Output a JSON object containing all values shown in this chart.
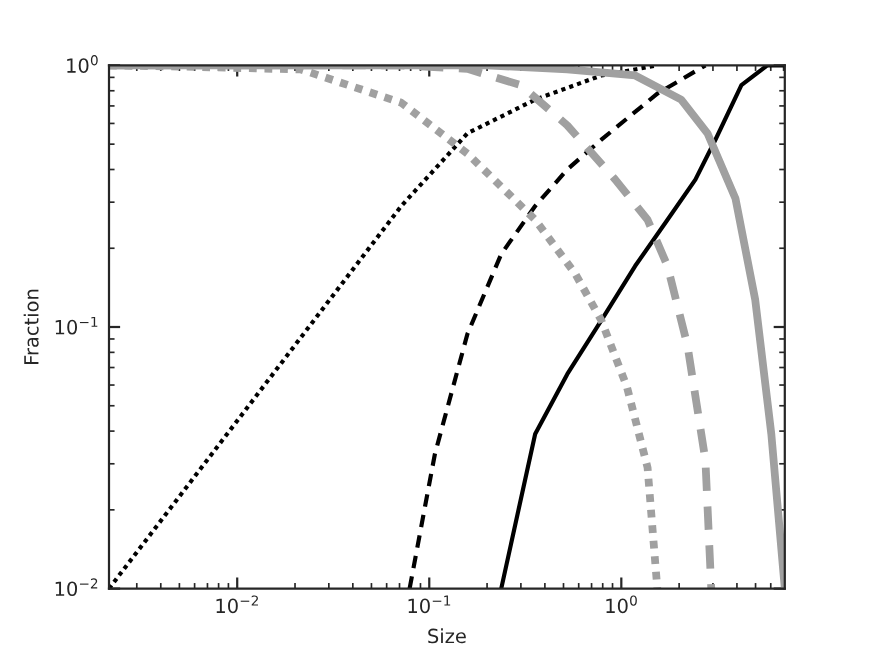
{
  "chart_data": {
    "type": "line",
    "xlabel": "Size",
    "ylabel": "Fraction",
    "log": "xy",
    "grid": false,
    "legend": false,
    "xlim": [
      0.00215,
      7.1
    ],
    "ylim": [
      0.01,
      1
    ],
    "xticks": [
      {
        "value": 0.01,
        "label": "10$^{−2}$"
      },
      {
        "value": 0.1,
        "label": "10$^{−1}$"
      },
      {
        "value": 1,
        "label": "10$^{0}$"
      }
    ],
    "yticks": [
      {
        "value": 0.01,
        "label": "10$^{−2}$"
      },
      {
        "value": 0.1,
        "label": "10$^{−1}$"
      },
      {
        "value": 1,
        "label": "10$^{0}$"
      }
    ],
    "series": [
      {
        "color": "#000000",
        "line_style": "dotted",
        "x": [
          0.00215,
          0.0715,
          0.158,
          0.356,
          0.787,
          1.54
        ],
        "values": [
          0.01,
          0.29,
          0.55,
          0.74,
          0.915,
          1.0
        ]
      },
      {
        "color": "#000000",
        "line_style": "dashed",
        "x": [
          0.079,
          0.107,
          0.158,
          0.237,
          0.356,
          0.523,
          0.787,
          1.54,
          2.74
        ],
        "values": [
          0.01,
          0.0327,
          0.094,
          0.19,
          0.29,
          0.4,
          0.52,
          0.78,
          1.0
        ]
      },
      {
        "color": "#000000",
        "line_style": "solid",
        "x": [
          0.237,
          0.356,
          0.523,
          0.787,
          1.18,
          1.74,
          2.43,
          3.09,
          4.22,
          5.76,
          7.1
        ],
        "values": [
          0.01,
          0.039,
          0.066,
          0.106,
          0.171,
          0.257,
          0.366,
          0.52,
          0.84,
          1.0,
          1.0
        ]
      },
      {
        "color": "#a0a0a0",
        "line_style": "dotted",
        "x": [
          0.00215,
          0.005,
          0.0215,
          0.0715,
          0.158,
          0.356,
          0.575,
          0.787,
          1.07,
          1.37,
          1.54
        ],
        "values": [
          1.0,
          0.99,
          0.965,
          0.72,
          0.46,
          0.257,
          0.16,
          0.106,
          0.059,
          0.029,
          0.01
        ]
      },
      {
        "color": "#a0a0a0",
        "line_style": "dashed",
        "x": [
          0.00215,
          0.0715,
          0.158,
          0.3,
          0.523,
          0.93,
          1.37,
          1.74,
          2.21,
          2.74,
          2.94
        ],
        "values": [
          1.0,
          1.0,
          0.97,
          0.84,
          0.59,
          0.366,
          0.257,
          0.171,
          0.085,
          0.031,
          0.01
        ]
      },
      {
        "color": "#a0a0a0",
        "line_style": "solid",
        "x": [
          0.00215,
          0.2,
          0.523,
          1.18,
          2.05,
          2.81,
          3.93,
          4.98,
          6.04,
          7.1
        ],
        "values": [
          1.0,
          1.0,
          0.965,
          0.915,
          0.74,
          0.55,
          0.31,
          0.127,
          0.039,
          0.01
        ]
      }
    ]
  }
}
